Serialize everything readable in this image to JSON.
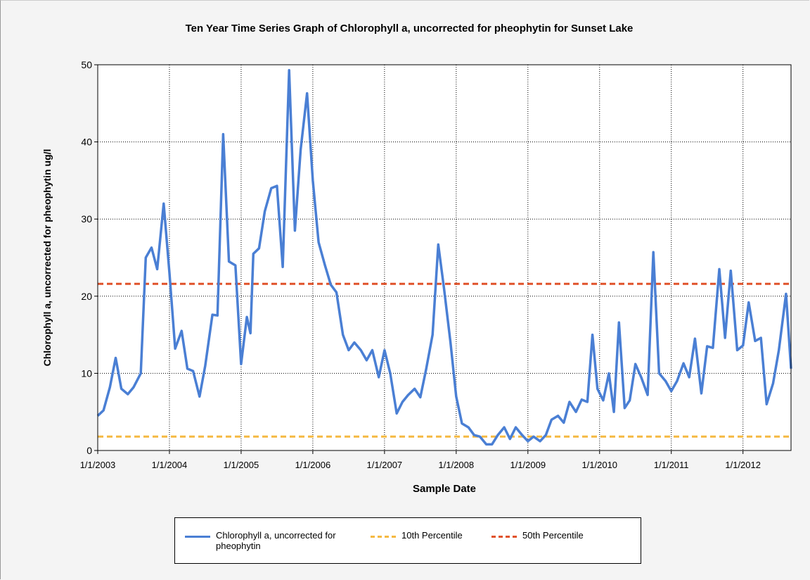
{
  "chart_data": {
    "type": "line",
    "title": "Ten Year Time Series Graph of Chlorophyll a, uncorrected for pheophytin for Sunset Lake",
    "x_label": "Sample Date",
    "y_label": "Chlorophyll a, uncorrected for pheophytin ug/l",
    "xlim": [
      2003,
      2012.67
    ],
    "ylim": [
      0,
      50
    ],
    "xticks": [
      {
        "value": 2003,
        "label": "1/1/2003"
      },
      {
        "value": 2004,
        "label": "1/1/2004"
      },
      {
        "value": 2005,
        "label": "1/1/2005"
      },
      {
        "value": 2006,
        "label": "1/1/2006"
      },
      {
        "value": 2007,
        "label": "1/1/2007"
      },
      {
        "value": 2008,
        "label": "1/1/2008"
      },
      {
        "value": 2009,
        "label": "1/1/2009"
      },
      {
        "value": 2010,
        "label": "1/1/2010"
      },
      {
        "value": 2011,
        "label": "1/1/2011"
      },
      {
        "value": 2012,
        "label": "1/1/2012"
      }
    ],
    "yticks": [
      0,
      10,
      20,
      30,
      40,
      50
    ],
    "grid": true,
    "x": [
      2003.0,
      2003.08,
      2003.17,
      2003.25,
      2003.33,
      2003.42,
      2003.5,
      2003.6,
      2003.67,
      2003.75,
      2003.83,
      2003.92,
      2004.0,
      2004.08,
      2004.17,
      2004.25,
      2004.33,
      2004.42,
      2004.5,
      2004.6,
      2004.67,
      2004.75,
      2004.83,
      2004.92,
      2005.0,
      2005.08,
      2005.13,
      2005.17,
      2005.25,
      2005.33,
      2005.42,
      2005.5,
      2005.58,
      2005.67,
      2005.75,
      2005.83,
      2005.92,
      2006.0,
      2006.08,
      2006.17,
      2006.25,
      2006.33,
      2006.42,
      2006.5,
      2006.58,
      2006.67,
      2006.75,
      2006.83,
      2006.92,
      2007.0,
      2007.08,
      2007.17,
      2007.25,
      2007.33,
      2007.42,
      2007.5,
      2007.58,
      2007.67,
      2007.75,
      2007.83,
      2007.92,
      2008.0,
      2008.08,
      2008.17,
      2008.25,
      2008.33,
      2008.42,
      2008.5,
      2008.58,
      2008.67,
      2008.75,
      2008.83,
      2008.92,
      2009.0,
      2009.08,
      2009.17,
      2009.25,
      2009.33,
      2009.42,
      2009.5,
      2009.58,
      2009.67,
      2009.75,
      2009.83,
      2009.9,
      2009.97,
      2010.05,
      2010.13,
      2010.2,
      2010.27,
      2010.35,
      2010.42,
      2010.5,
      2010.58,
      2010.67,
      2010.75,
      2010.83,
      2010.92,
      2011.0,
      2011.08,
      2011.17,
      2011.25,
      2011.33,
      2011.42,
      2011.5,
      2011.58,
      2011.67,
      2011.75,
      2011.83,
      2011.92,
      2012.0,
      2012.08,
      2012.17,
      2012.25,
      2012.33,
      2012.42,
      2012.5,
      2012.6,
      2012.67
    ],
    "series": [
      {
        "name": "Chlorophyll a, uncorrected for pheophytin",
        "color": "#4a7fd4",
        "values": [
          4.5,
          5.2,
          8.2,
          12,
          8,
          7.3,
          8.2,
          10,
          25,
          26.3,
          23.5,
          32,
          23,
          13.2,
          15.5,
          10.6,
          10.3,
          7,
          11,
          17.6,
          17.5,
          41,
          24.5,
          24,
          11.2,
          17.3,
          15.2,
          25.5,
          26.2,
          31,
          34,
          34.3,
          23.8,
          49.3,
          28.5,
          39,
          46.3,
          35,
          27,
          24,
          21.5,
          20.5,
          15,
          13,
          14,
          13,
          11.7,
          13,
          9.5,
          13,
          10,
          4.8,
          6.3,
          7.2,
          8,
          6.9,
          10.5,
          15,
          26.7,
          21,
          14,
          7,
          3.5,
          3,
          2,
          1.8,
          0.8,
          0.8,
          2,
          3,
          1.5,
          3,
          2,
          1.2,
          1.8,
          1.2,
          2,
          4,
          4.5,
          3.6,
          6.3,
          5,
          6.6,
          6.3,
          15,
          8,
          6.5,
          10,
          5,
          16.6,
          5.5,
          6.5,
          11.2,
          9.5,
          7.2,
          25.7,
          10,
          9,
          7.7,
          9,
          11.3,
          9.5,
          14.5,
          7.4,
          13.5,
          13.3,
          23.5,
          14.6,
          23.3,
          13,
          13.6,
          19.2,
          14.2,
          14.6,
          6,
          8.7,
          13,
          20.3,
          10.6
        ]
      }
    ],
    "reference_lines": [
      {
        "name": "10th Percentile",
        "color": "#f5b942",
        "value": 1.8,
        "style": "dashed"
      },
      {
        "name": "50th Percentile",
        "color": "#e0522a",
        "value": 21.6,
        "style": "dashed"
      }
    ]
  }
}
